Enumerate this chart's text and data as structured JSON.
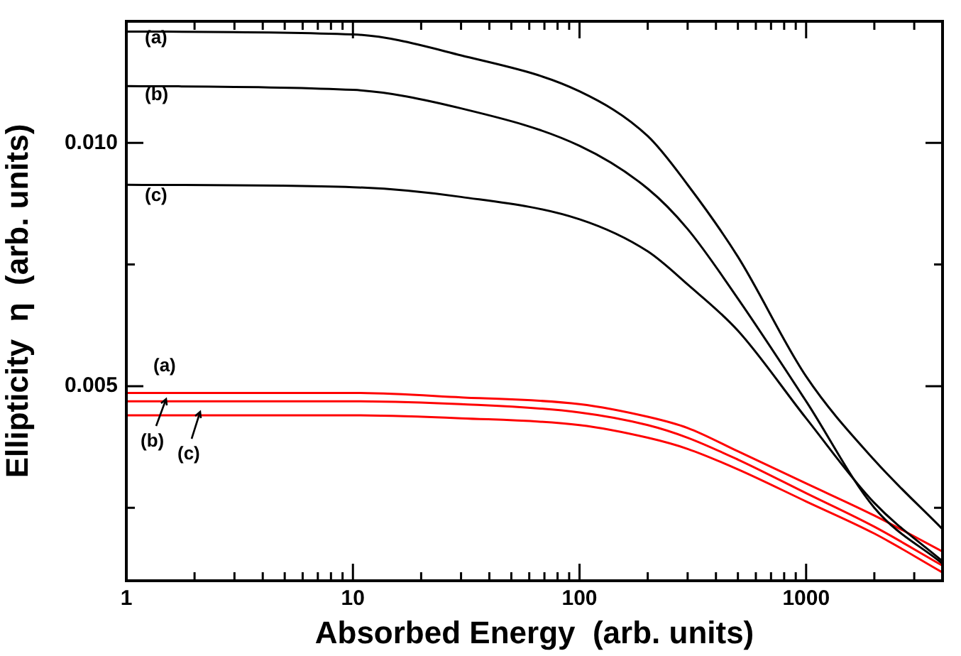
{
  "chart_data": {
    "type": "line",
    "xlabel": "Absorbed Energy  (arb. units)",
    "ylabel": "Ellipticity  η  (arb. units)",
    "x": [
      1,
      10,
      30,
      100,
      200,
      300,
      500,
      1000,
      2000,
      4000
    ],
    "series": [
      {
        "color": "#000000",
        "values": [
          0.01229,
          0.01223,
          0.0118,
          0.01106,
          0.01014,
          0.00914,
          0.00766,
          0.0052,
          0.00348,
          0.00206
        ]
      },
      {
        "color": "#000000",
        "values": [
          0.01117,
          0.01109,
          0.01071,
          0.00994,
          0.00906,
          0.00823,
          0.0068,
          0.00469,
          0.0025,
          0.00135
        ]
      },
      {
        "color": "#000000",
        "values": [
          0.00914,
          0.00909,
          0.00889,
          0.00843,
          0.00777,
          0.00709,
          0.00614,
          0.00434,
          0.0026,
          0.0014
        ]
      },
      {
        "color": "#ff0000",
        "values": [
          0.00486,
          0.00486,
          0.00477,
          0.00463,
          0.00437,
          0.00414,
          0.00366,
          0.003,
          0.00234,
          0.0016
        ]
      },
      {
        "color": "#ff0000",
        "values": [
          0.00469,
          0.00469,
          0.00463,
          0.00446,
          0.0042,
          0.00394,
          0.00349,
          0.0028,
          0.00211,
          0.00131
        ]
      },
      {
        "color": "#ff0000",
        "values": [
          0.0044,
          0.0044,
          0.00434,
          0.0042,
          0.00394,
          0.00371,
          0.00329,
          0.00263,
          0.00197,
          0.00117
        ]
      }
    ],
    "log": "x",
    "xlim": [
      1,
      4000
    ],
    "ylim": [
      0.001,
      0.0125
    ],
    "xticks": [
      1,
      {
        "value": 2,
        "label": null
      },
      {
        "value": 3,
        "label": null
      },
      {
        "value": 4,
        "label": null
      },
      {
        "value": 5,
        "label": null
      },
      {
        "value": 6,
        "label": null
      },
      {
        "value": 7,
        "label": null
      },
      {
        "value": 8,
        "label": null
      },
      {
        "value": 9,
        "label": null
      },
      10,
      {
        "value": 20,
        "label": null
      },
      {
        "value": 30,
        "label": null
      },
      {
        "value": 40,
        "label": null
      },
      {
        "value": 50,
        "label": null
      },
      {
        "value": 60,
        "label": null
      },
      {
        "value": 70,
        "label": null
      },
      {
        "value": 80,
        "label": null
      },
      {
        "value": 90,
        "label": null
      },
      100,
      {
        "value": 200,
        "label": null
      },
      {
        "value": 300,
        "label": null
      },
      {
        "value": 400,
        "label": null
      },
      {
        "value": 500,
        "label": null
      },
      {
        "value": 600,
        "label": null
      },
      {
        "value": 700,
        "label": null
      },
      {
        "value": 800,
        "label": null
      },
      {
        "value": 900,
        "label": null
      },
      1000,
      {
        "value": 2000,
        "label": null
      },
      {
        "value": 3000,
        "label": null
      }
    ],
    "yticks": [
      {
        "value": 0.0025,
        "label": null
      },
      0.005,
      {
        "value": 0.0075,
        "label": null
      },
      {
        "value": 0.01,
        "label": "0.010"
      }
    ],
    "annotations": [
      "(a)",
      "(b)",
      "(c)",
      "(a)",
      "(b)",
      "(c)"
    ],
    "legend": false,
    "grid": false,
    "marker": "none",
    "line_style": "solid"
  }
}
